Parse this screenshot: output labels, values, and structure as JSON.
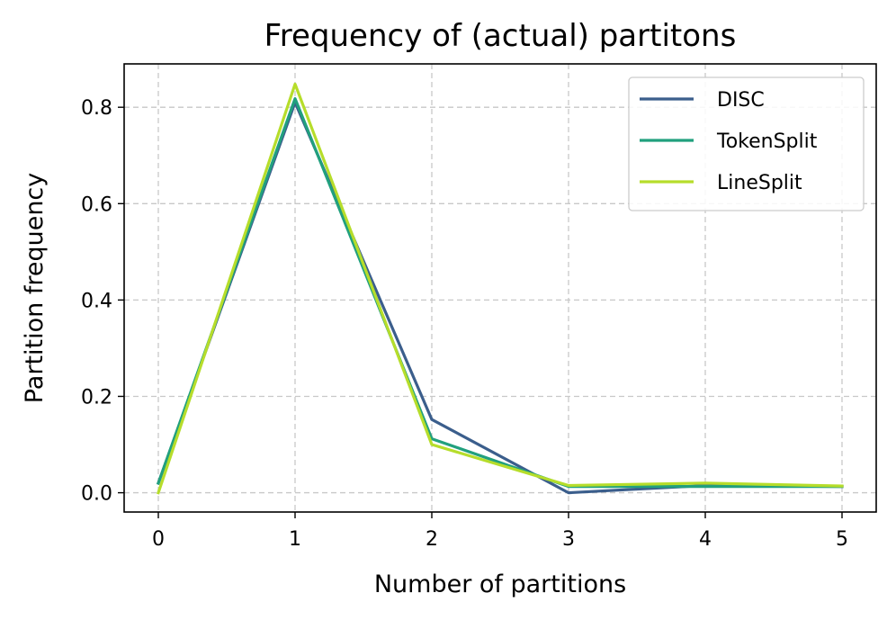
{
  "chart_data": {
    "type": "line",
    "title": "Frequency of (actual) partitons",
    "xlabel": "Number of partitions",
    "ylabel": "Partition frequency",
    "x": [
      0,
      1,
      2,
      3,
      4,
      5
    ],
    "xlim": [
      -0.25,
      5.25
    ],
    "ylim": [
      -0.04,
      0.89
    ],
    "xticks": [
      0,
      1,
      2,
      3,
      4,
      5
    ],
    "xtick_labels": [
      "0",
      "1",
      "2",
      "3",
      "4",
      "5"
    ],
    "yticks": [
      0.0,
      0.2,
      0.4,
      0.6,
      0.8
    ],
    "ytick_labels": [
      "0.0",
      "0.2",
      "0.4",
      "0.6",
      "0.8"
    ],
    "grid": true,
    "legend_position": "top-right",
    "series": [
      {
        "name": "DISC",
        "color": "#3b5e8c",
        "values": [
          0.02,
          0.81,
          0.152,
          0.0,
          0.015,
          0.013
        ]
      },
      {
        "name": "TokenSplit",
        "color": "#21a07e",
        "values": [
          0.02,
          0.818,
          0.112,
          0.013,
          0.013,
          0.013
        ]
      },
      {
        "name": "LineSplit",
        "color": "#b6dd2b",
        "values": [
          0.0,
          0.848,
          0.1,
          0.015,
          0.02,
          0.014
        ]
      }
    ]
  }
}
